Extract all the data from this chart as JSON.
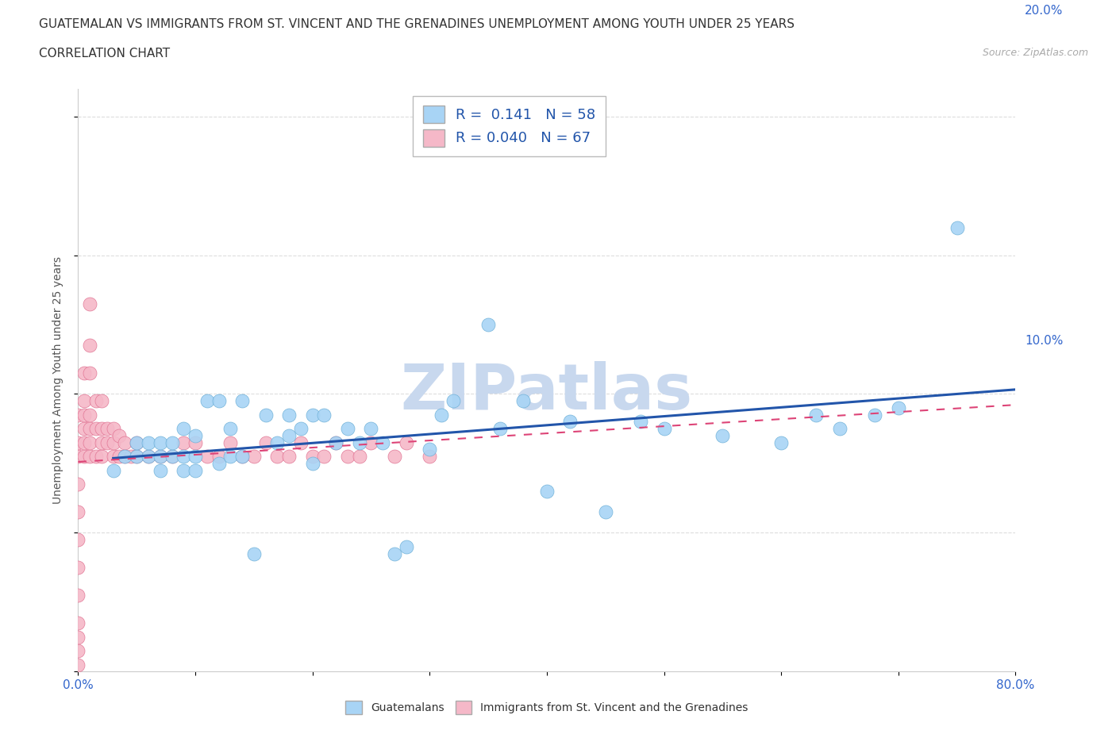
{
  "title_line1": "GUATEMALAN VS IMMIGRANTS FROM ST. VINCENT AND THE GRENADINES UNEMPLOYMENT AMONG YOUTH UNDER 25 YEARS",
  "title_line2": "CORRELATION CHART",
  "source": "Source: ZipAtlas.com",
  "ylabel": "Unemployment Among Youth under 25 years",
  "xlim": [
    0.0,
    0.8
  ],
  "ylim": [
    0.0,
    0.42
  ],
  "blue_R": 0.141,
  "blue_N": 58,
  "pink_R": 0.04,
  "pink_N": 67,
  "blue_color": "#a8d4f5",
  "pink_color": "#f5b8c8",
  "blue_edge_color": "#6aaed6",
  "pink_edge_color": "#e07090",
  "blue_line_color": "#2255aa",
  "pink_line_color": "#dd4477",
  "watermark_color": "#d0dff0",
  "watermark_text": "ZIPatlas",
  "grid_color": "#dddddd",
  "bg_color": "#ffffff",
  "blue_scatter_x": [
    0.03,
    0.04,
    0.05,
    0.05,
    0.06,
    0.06,
    0.07,
    0.07,
    0.07,
    0.08,
    0.08,
    0.09,
    0.09,
    0.09,
    0.1,
    0.1,
    0.1,
    0.11,
    0.12,
    0.12,
    0.13,
    0.13,
    0.14,
    0.14,
    0.15,
    0.16,
    0.17,
    0.18,
    0.18,
    0.19,
    0.2,
    0.2,
    0.21,
    0.22,
    0.23,
    0.24,
    0.25,
    0.26,
    0.27,
    0.28,
    0.3,
    0.31,
    0.32,
    0.35,
    0.36,
    0.38,
    0.4,
    0.42,
    0.45,
    0.48,
    0.5,
    0.55,
    0.6,
    0.63,
    0.65,
    0.68,
    0.7,
    0.75
  ],
  "blue_scatter_y": [
    0.145,
    0.155,
    0.155,
    0.165,
    0.155,
    0.165,
    0.145,
    0.155,
    0.165,
    0.155,
    0.165,
    0.145,
    0.155,
    0.175,
    0.145,
    0.155,
    0.17,
    0.195,
    0.15,
    0.195,
    0.155,
    0.175,
    0.155,
    0.195,
    0.085,
    0.185,
    0.165,
    0.17,
    0.185,
    0.175,
    0.15,
    0.185,
    0.185,
    0.165,
    0.175,
    0.165,
    0.175,
    0.165,
    0.085,
    0.09,
    0.16,
    0.185,
    0.195,
    0.25,
    0.175,
    0.195,
    0.13,
    0.18,
    0.115,
    0.18,
    0.175,
    0.17,
    0.165,
    0.185,
    0.175,
    0.185,
    0.19,
    0.32
  ],
  "pink_scatter_x": [
    0.0,
    0.0,
    0.0,
    0.0,
    0.0,
    0.0,
    0.0,
    0.0,
    0.0,
    0.0,
    0.0,
    0.0,
    0.005,
    0.005,
    0.005,
    0.005,
    0.005,
    0.005,
    0.01,
    0.01,
    0.01,
    0.01,
    0.01,
    0.01,
    0.01,
    0.015,
    0.015,
    0.015,
    0.02,
    0.02,
    0.02,
    0.02,
    0.025,
    0.025,
    0.03,
    0.03,
    0.03,
    0.035,
    0.035,
    0.04,
    0.04,
    0.045,
    0.05,
    0.05,
    0.06,
    0.07,
    0.08,
    0.09,
    0.1,
    0.11,
    0.12,
    0.13,
    0.14,
    0.15,
    0.16,
    0.17,
    0.18,
    0.19,
    0.2,
    0.21,
    0.22,
    0.23,
    0.24,
    0.25,
    0.27,
    0.28,
    0.3
  ],
  "pink_scatter_y": [
    0.005,
    0.015,
    0.025,
    0.035,
    0.055,
    0.075,
    0.095,
    0.115,
    0.135,
    0.155,
    0.165,
    0.185,
    0.155,
    0.165,
    0.175,
    0.185,
    0.195,
    0.215,
    0.155,
    0.165,
    0.175,
    0.185,
    0.215,
    0.235,
    0.265,
    0.155,
    0.175,
    0.195,
    0.155,
    0.165,
    0.175,
    0.195,
    0.165,
    0.175,
    0.155,
    0.165,
    0.175,
    0.155,
    0.17,
    0.155,
    0.165,
    0.155,
    0.155,
    0.165,
    0.155,
    0.155,
    0.155,
    0.165,
    0.165,
    0.155,
    0.155,
    0.165,
    0.155,
    0.155,
    0.165,
    0.155,
    0.155,
    0.165,
    0.155,
    0.155,
    0.165,
    0.155,
    0.155,
    0.165,
    0.155,
    0.165,
    0.155
  ],
  "title_fontsize": 11,
  "axis_label_fontsize": 10,
  "tick_fontsize": 11,
  "legend_fontsize": 13
}
